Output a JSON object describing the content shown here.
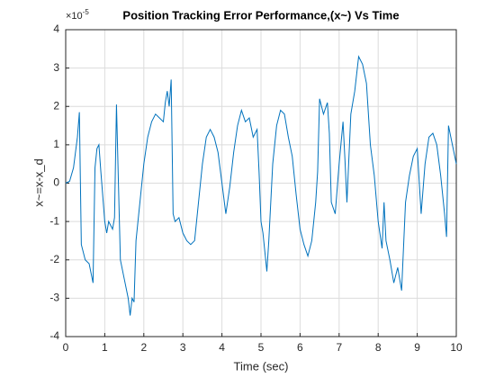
{
  "chart_data": {
    "type": "line",
    "title": "Position Tracking Error Performance,(x~) Vs Time",
    "xlabel": "Time (sec)",
    "ylabel": "x~=x-x_d",
    "yscale_base": "×10",
    "yscale_exponent": "-5",
    "xlim": [
      0,
      10
    ],
    "ylim": [
      -4,
      4
    ],
    "xticks": [
      0,
      1,
      2,
      3,
      4,
      5,
      6,
      7,
      8,
      9,
      10
    ],
    "yticks": [
      -4,
      -3,
      -2,
      -1,
      0,
      1,
      2,
      3,
      4
    ],
    "grid": true,
    "series": [
      {
        "color": "#0072bd",
        "x": [
          0,
          0.1,
          0.2,
          0.3,
          0.35,
          0.4,
          0.5,
          0.6,
          0.7,
          0.75,
          0.8,
          0.85,
          0.9,
          1.0,
          1.05,
          1.1,
          1.2,
          1.25,
          1.3,
          1.35,
          1.4,
          1.5,
          1.6,
          1.65,
          1.7,
          1.75,
          1.8,
          1.9,
          2.0,
          2.1,
          2.2,
          2.3,
          2.4,
          2.5,
          2.55,
          2.6,
          2.65,
          2.7,
          2.75,
          2.8,
          2.9,
          3.0,
          3.1,
          3.2,
          3.3,
          3.4,
          3.5,
          3.6,
          3.7,
          3.8,
          3.9,
          4.0,
          4.1,
          4.2,
          4.3,
          4.4,
          4.5,
          4.6,
          4.7,
          4.8,
          4.9,
          4.95,
          5.0,
          5.05,
          5.1,
          5.15,
          5.2,
          5.3,
          5.4,
          5.5,
          5.6,
          5.7,
          5.8,
          5.9,
          6.0,
          6.1,
          6.2,
          6.3,
          6.4,
          6.45,
          6.5,
          6.6,
          6.7,
          6.75,
          6.8,
          6.9,
          7.0,
          7.1,
          7.15,
          7.2,
          7.3,
          7.4,
          7.5,
          7.6,
          7.7,
          7.8,
          7.9,
          8.0,
          8.1,
          8.15,
          8.2,
          8.3,
          8.4,
          8.5,
          8.6,
          8.7,
          8.8,
          8.9,
          9.0,
          9.1,
          9.2,
          9.3,
          9.4,
          9.5,
          9.6,
          9.7,
          9.75,
          9.8,
          9.9,
          10.0
        ],
        "values": [
          0,
          0.05,
          0.4,
          1.2,
          1.85,
          -1.6,
          -2.0,
          -2.1,
          -2.6,
          0.4,
          0.9,
          1.0,
          0.3,
          -1.0,
          -1.3,
          -1.0,
          -1.2,
          -0.9,
          2.05,
          0.0,
          -2.0,
          -2.5,
          -3.0,
          -3.45,
          -3.0,
          -3.1,
          -1.5,
          -0.5,
          0.5,
          1.2,
          1.6,
          1.8,
          1.7,
          1.6,
          2.1,
          2.4,
          2.0,
          2.7,
          -0.8,
          -1.0,
          -0.9,
          -1.3,
          -1.5,
          -1.6,
          -1.5,
          -0.5,
          0.5,
          1.2,
          1.4,
          1.2,
          0.8,
          0.0,
          -0.8,
          -0.1,
          0.8,
          1.5,
          1.9,
          1.6,
          1.7,
          1.2,
          1.4,
          0.3,
          -1.0,
          -1.3,
          -1.8,
          -2.3,
          -1.5,
          0.5,
          1.5,
          1.9,
          1.8,
          1.2,
          0.7,
          -0.3,
          -1.2,
          -1.6,
          -1.9,
          -1.5,
          -0.5,
          0.3,
          2.2,
          1.8,
          2.1,
          1.3,
          -0.5,
          -0.8,
          0.5,
          1.6,
          0.6,
          -0.5,
          1.8,
          2.4,
          3.3,
          3.1,
          2.6,
          1.0,
          0.2,
          -1.0,
          -1.7,
          -0.5,
          -1.5,
          -2.0,
          -2.6,
          -2.2,
          -2.8,
          -0.5,
          0.2,
          0.7,
          0.9,
          -0.8,
          0.5,
          1.2,
          1.3,
          1.0,
          0.2,
          -0.8,
          -1.4,
          1.5,
          1.0,
          0.5
        ]
      }
    ]
  }
}
